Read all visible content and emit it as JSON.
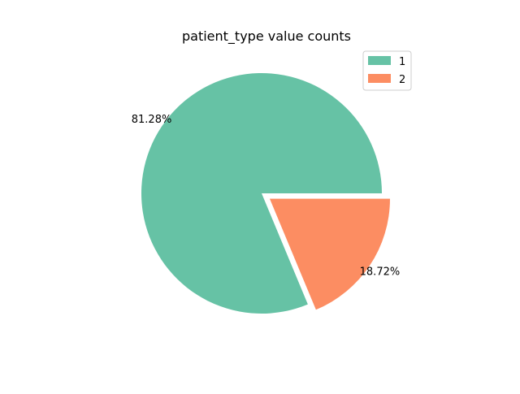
{
  "chart_data": {
    "type": "pie",
    "title": "patient_type value counts",
    "categories": [
      "1",
      "2"
    ],
    "values": [
      81.28,
      18.72
    ],
    "value_labels": [
      "81.28%",
      "18.72%"
    ],
    "colors": [
      "#66c2a5",
      "#fc8d62"
    ],
    "exploded": [
      false,
      true
    ],
    "legend": {
      "placement": "top-right",
      "entries": [
        "1",
        "2"
      ]
    }
  }
}
